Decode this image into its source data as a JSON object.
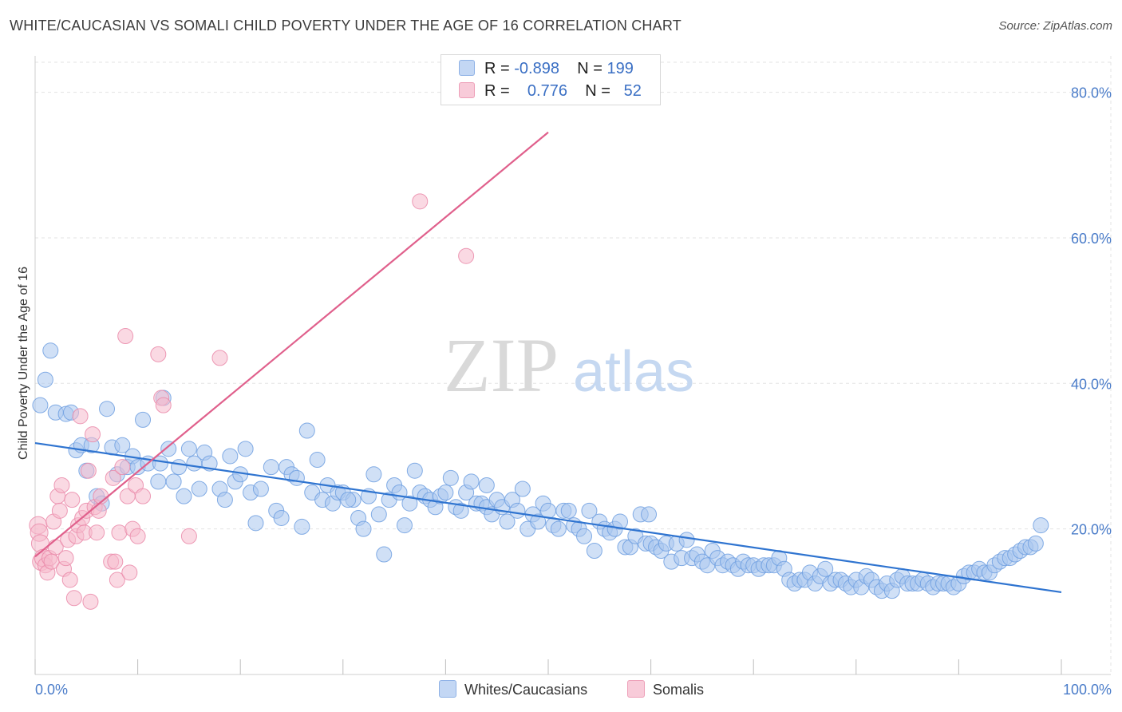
{
  "title": "WHITE/CAUCASIAN VS SOMALI CHILD POVERTY UNDER THE AGE OF 16 CORRELATION CHART",
  "source": "Source: ZipAtlas.com",
  "watermark": {
    "zip": "ZIP",
    "atlas": "atlas"
  },
  "legend": {
    "rows": [
      {
        "r_label": "R =",
        "r_value": "-0.898",
        "n_label": "N =",
        "n_value": "199",
        "color": "#a9c6ef"
      },
      {
        "r_label": "R =",
        "r_value": "0.776",
        "n_label": "N =",
        "n_value": "52",
        "color": "#f5b9cc"
      }
    ]
  },
  "bottom_legend": [
    {
      "label": "Whites/Caucasians",
      "color": "#a9c6ef"
    },
    {
      "label": "Somalis",
      "color": "#f5b9cc"
    }
  ],
  "chart_data": {
    "type": "scatter",
    "title": "WHITE/CAUCASIAN VS SOMALI CHILD POVERTY UNDER THE AGE OF 16 CORRELATION CHART",
    "xlabel": "",
    "ylabel": "Child Poverty Under the Age of 16",
    "xlim": [
      0,
      100
    ],
    "ylim": [
      0,
      85
    ],
    "x_tick_labels": [
      "0.0%",
      "100.0%"
    ],
    "y_ticks": [
      20,
      40,
      60,
      80
    ],
    "y_tick_labels": [
      "20.0%",
      "40.0%",
      "60.0%",
      "80.0%"
    ],
    "grid": true,
    "series": [
      {
        "name": "Whites/Caucasians",
        "color": "#6f9fe0",
        "fill": "#a9c6ef",
        "trend": {
          "x": [
            0,
            100
          ],
          "y": [
            31.8,
            11.3
          ]
        },
        "points": [
          [
            0.5,
            37
          ],
          [
            1,
            40.5
          ],
          [
            1.5,
            44.5
          ],
          [
            2,
            36
          ],
          [
            3,
            35.8
          ],
          [
            3.5,
            36
          ],
          [
            4,
            30.8
          ],
          [
            4.5,
            31.5
          ],
          [
            5,
            28
          ],
          [
            5.5,
            31.5
          ],
          [
            6,
            24.5
          ],
          [
            6.5,
            23.5
          ],
          [
            7,
            36.5
          ],
          [
            7.5,
            31.2
          ],
          [
            8,
            27.5
          ],
          [
            8.5,
            31.5
          ],
          [
            9,
            28.5
          ],
          [
            9.5,
            30
          ],
          [
            10,
            28.5
          ],
          [
            10.5,
            35
          ],
          [
            11,
            29
          ],
          [
            12,
            26.5
          ],
          [
            12.5,
            38
          ],
          [
            13,
            31
          ],
          [
            13.5,
            26.5
          ],
          [
            14,
            28.5
          ],
          [
            14.5,
            24.5
          ],
          [
            15,
            31
          ],
          [
            15.5,
            29
          ],
          [
            16,
            25.5
          ],
          [
            16.5,
            30.5
          ],
          [
            17,
            29
          ],
          [
            18,
            25.5
          ],
          [
            18.5,
            24
          ],
          [
            19,
            30
          ],
          [
            19.5,
            26.5
          ],
          [
            20,
            27.5
          ],
          [
            20.5,
            31
          ],
          [
            21,
            25
          ],
          [
            21.5,
            20.8
          ],
          [
            22,
            25.5
          ],
          [
            23,
            28.5
          ],
          [
            23.5,
            22.5
          ],
          [
            24,
            21.5
          ],
          [
            24.5,
            28.5
          ],
          [
            25,
            27.5
          ],
          [
            25.5,
            27
          ],
          [
            26,
            20.3
          ],
          [
            26.5,
            33.5
          ],
          [
            27,
            25
          ],
          [
            27.5,
            29.5
          ],
          [
            28,
            24
          ],
          [
            28.5,
            26
          ],
          [
            29,
            23.5
          ],
          [
            29.5,
            25
          ],
          [
            30,
            25
          ],
          [
            31,
            24
          ],
          [
            31.5,
            21.5
          ],
          [
            32,
            20
          ],
          [
            32.5,
            24.5
          ],
          [
            33,
            27.5
          ],
          [
            33.5,
            22
          ],
          [
            34,
            16.5
          ],
          [
            34.5,
            24
          ],
          [
            35,
            26
          ],
          [
            35.5,
            25
          ],
          [
            36,
            20.5
          ],
          [
            36.5,
            23.5
          ],
          [
            37,
            28
          ],
          [
            37.5,
            25
          ],
          [
            38,
            24.5
          ],
          [
            38.5,
            24
          ],
          [
            39,
            23
          ],
          [
            39.5,
            24.5
          ],
          [
            40,
            25
          ],
          [
            40.5,
            27
          ],
          [
            41,
            23
          ],
          [
            41.5,
            22.5
          ],
          [
            42,
            25
          ],
          [
            42.5,
            26.5
          ],
          [
            43,
            23.5
          ],
          [
            43.5,
            23.5
          ],
          [
            44,
            23
          ],
          [
            44.5,
            22
          ],
          [
            45,
            24
          ],
          [
            45.5,
            23
          ],
          [
            46,
            21
          ],
          [
            46.5,
            24
          ],
          [
            47,
            22.5
          ],
          [
            47.5,
            25.5
          ],
          [
            48,
            20
          ],
          [
            48.5,
            22
          ],
          [
            49,
            21
          ],
          [
            49.5,
            23.5
          ],
          [
            50,
            22.5
          ],
          [
            50.5,
            20.5
          ],
          [
            51,
            20
          ],
          [
            51.5,
            22.5
          ],
          [
            52,
            22.5
          ],
          [
            52.5,
            20.5
          ],
          [
            53,
            20
          ],
          [
            53.5,
            19
          ],
          [
            54,
            22.5
          ],
          [
            54.5,
            17
          ],
          [
            55,
            21
          ],
          [
            55.5,
            20
          ],
          [
            56,
            19.5
          ],
          [
            56.5,
            20
          ],
          [
            57,
            21
          ],
          [
            57.5,
            17.5
          ],
          [
            58,
            17.5
          ],
          [
            58.5,
            19
          ],
          [
            59,
            22
          ],
          [
            59.5,
            18
          ],
          [
            60,
            18
          ],
          [
            60.5,
            17.5
          ],
          [
            61,
            17
          ],
          [
            61.5,
            18
          ],
          [
            62,
            15.5
          ],
          [
            62.5,
            18
          ],
          [
            63,
            16
          ],
          [
            63.5,
            18.5
          ],
          [
            64,
            16
          ],
          [
            64.5,
            16.5
          ],
          [
            65,
            15.5
          ],
          [
            65.5,
            15
          ],
          [
            66,
            17
          ],
          [
            66.5,
            16
          ],
          [
            67,
            15
          ],
          [
            67.5,
            15.5
          ],
          [
            68,
            15
          ],
          [
            68.5,
            14.5
          ],
          [
            69,
            15.5
          ],
          [
            69.5,
            15
          ],
          [
            70,
            15
          ],
          [
            70.5,
            14.5
          ],
          [
            71,
            15
          ],
          [
            71.5,
            15
          ],
          [
            72,
            15
          ],
          [
            72.5,
            16
          ],
          [
            73,
            14.5
          ],
          [
            73.5,
            13
          ],
          [
            74,
            12.5
          ],
          [
            74.5,
            13
          ],
          [
            75,
            13
          ],
          [
            75.5,
            14
          ],
          [
            76,
            12.5
          ],
          [
            76.5,
            13.5
          ],
          [
            77,
            14.5
          ],
          [
            77.5,
            12.5
          ],
          [
            78,
            13
          ],
          [
            78.5,
            13
          ],
          [
            79,
            12.5
          ],
          [
            79.5,
            12
          ],
          [
            80,
            13
          ],
          [
            80.5,
            12
          ],
          [
            81,
            13.5
          ],
          [
            81.5,
            13
          ],
          [
            82,
            12
          ],
          [
            82.5,
            11.5
          ],
          [
            83,
            12.5
          ],
          [
            83.5,
            11.5
          ],
          [
            84,
            13
          ],
          [
            84.5,
            13.5
          ],
          [
            85,
            12.5
          ],
          [
            85.5,
            12.5
          ],
          [
            86,
            12.5
          ],
          [
            86.5,
            13
          ],
          [
            87,
            12.5
          ],
          [
            87.5,
            12
          ],
          [
            88,
            12.5
          ],
          [
            88.5,
            12.5
          ],
          [
            89,
            12.5
          ],
          [
            89.5,
            12
          ],
          [
            90,
            12.5
          ],
          [
            90.5,
            13.5
          ],
          [
            91,
            14
          ],
          [
            91.5,
            14
          ],
          [
            92,
            14.5
          ],
          [
            92.5,
            14
          ],
          [
            93,
            14
          ],
          [
            93.5,
            15
          ],
          [
            94,
            15.5
          ],
          [
            94.5,
            16
          ],
          [
            95,
            16
          ],
          [
            95.5,
            16.5
          ],
          [
            96,
            17
          ],
          [
            96.5,
            17.5
          ],
          [
            97,
            17.5
          ],
          [
            97.5,
            18
          ],
          [
            98,
            20.5
          ],
          [
            12.2,
            29
          ],
          [
            30.5,
            24
          ],
          [
            44,
            26
          ],
          [
            59.8,
            22
          ]
        ]
      },
      {
        "name": "Somalis",
        "color": "#ea8aa9",
        "fill": "#f5b9cc",
        "trend": {
          "x": [
            0,
            50
          ],
          "y": [
            16.2,
            74.5
          ]
        },
        "points": [
          [
            0.3,
            20.5
          ],
          [
            0.4,
            19.5
          ],
          [
            0.5,
            18
          ],
          [
            0.6,
            15.5
          ],
          [
            0.8,
            16
          ],
          [
            1,
            15
          ],
          [
            1.2,
            14
          ],
          [
            1.4,
            16
          ],
          [
            1.6,
            15.5
          ],
          [
            1.8,
            21
          ],
          [
            2,
            17.5
          ],
          [
            2.2,
            24.5
          ],
          [
            2.4,
            22.5
          ],
          [
            2.6,
            26
          ],
          [
            2.8,
            14.5
          ],
          [
            3,
            16
          ],
          [
            3.2,
            18.5
          ],
          [
            3.4,
            13
          ],
          [
            3.6,
            24
          ],
          [
            3.8,
            10.5
          ],
          [
            4,
            19
          ],
          [
            4.2,
            20.5
          ],
          [
            4.4,
            35.5
          ],
          [
            4.6,
            21.5
          ],
          [
            4.8,
            19.5
          ],
          [
            5,
            22.5
          ],
          [
            5.2,
            28
          ],
          [
            5.4,
            10
          ],
          [
            5.6,
            33
          ],
          [
            5.8,
            23
          ],
          [
            6,
            19.5
          ],
          [
            6.2,
            22.5
          ],
          [
            6.4,
            24.5
          ],
          [
            7.4,
            15.5
          ],
          [
            7.6,
            27
          ],
          [
            7.8,
            15.5
          ],
          [
            8,
            13
          ],
          [
            8.2,
            19.5
          ],
          [
            8.5,
            28.5
          ],
          [
            8.8,
            46.5
          ],
          [
            9,
            24.5
          ],
          [
            9.2,
            14
          ],
          [
            9.5,
            20
          ],
          [
            9.8,
            26
          ],
          [
            10,
            19
          ],
          [
            10.5,
            24.5
          ],
          [
            12,
            44
          ],
          [
            12.3,
            38
          ],
          [
            12.5,
            37
          ],
          [
            15,
            19
          ],
          [
            18,
            43.5
          ],
          [
            37.5,
            65
          ],
          [
            42,
            57.5
          ]
        ]
      }
    ]
  }
}
